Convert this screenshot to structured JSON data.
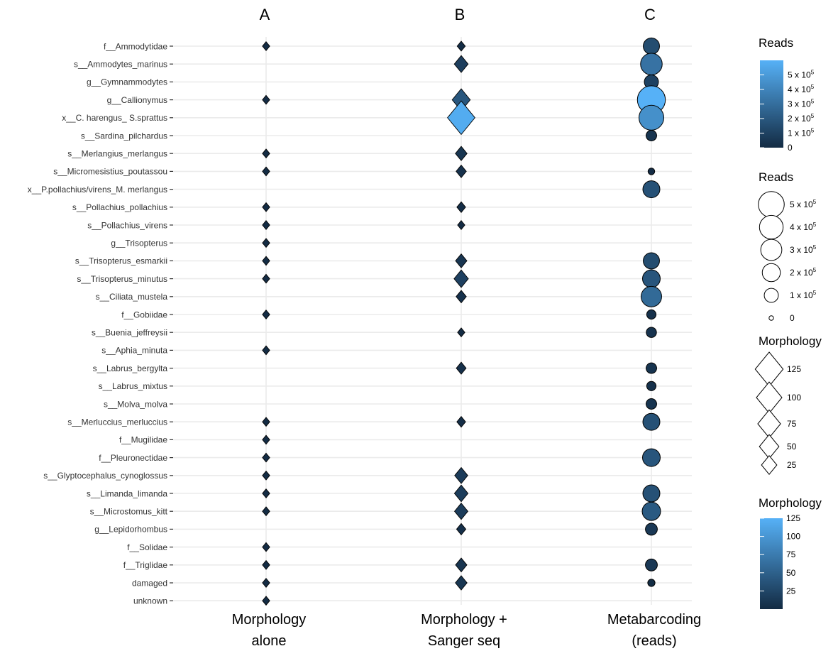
{
  "chart_data": {
    "type": "scatter",
    "panels": [
      {
        "id": "A",
        "label": "A",
        "title_lines": [
          "Morphology",
          "alone"
        ],
        "shape": "diamond"
      },
      {
        "id": "B",
        "label": "B",
        "title_lines": [
          "Morphology +",
          "Sanger seq"
        ],
        "shape": "diamond"
      },
      {
        "id": "C",
        "label": "C",
        "title_lines": [
          "Metabarcoding",
          "(reads)"
        ],
        "shape": "circle"
      }
    ],
    "taxa": [
      "f__Ammodytidae",
      "s__Ammodytes_marinus",
      "g__Gymnammodytes",
      "g__Callionymus",
      "x__C. harengus_ S.sprattus",
      "s__Sardina_pilchardus",
      "s__Merlangius_merlangus",
      "s__Micromesistius_poutassou",
      "x__P.pollachius/virens_M. merlangus",
      "s__Pollachius_pollachius",
      "s__Pollachius_virens",
      "g__Trisopterus",
      "s__Trisopterus_esmarkii",
      "s__Trisopterus_minutus",
      "s__Ciliata_mustela",
      "f__Gobiidae",
      "s__Buenia_jeffreysii",
      "s__Aphia_minuta",
      "s__Labrus_bergylta",
      "s__Labrus_mixtus",
      "s__Molva_molva",
      "s__Merluccius_merluccius",
      "f__Mugilidae",
      "f__Pleuronectidae",
      "s__Glyptocephalus_cynoglossus",
      "s__Limanda_limanda",
      "s__Microstomus_kitt",
      "g__Lepidorhombus",
      "f__Solidae",
      "f__Triglidae",
      "damaged",
      "unknown"
    ],
    "morphology_alone": [
      1,
      null,
      null,
      1,
      null,
      null,
      1,
      1,
      null,
      1,
      1,
      1,
      1,
      1,
      null,
      1,
      null,
      1,
      null,
      null,
      null,
      1,
      1,
      1,
      1,
      1,
      1,
      null,
      1,
      1,
      1,
      1
    ],
    "morphology_sanger": [
      2,
      18,
      null,
      40,
      120,
      null,
      10,
      6,
      null,
      3,
      1,
      null,
      9,
      20,
      6,
      null,
      1,
      null,
      5,
      null,
      null,
      3,
      null,
      null,
      15,
      17,
      16,
      4,
      null,
      9,
      10,
      null
    ],
    "metabarcoding_reads": [
      150000,
      320000,
      100000,
      600000,
      450000,
      40000,
      null,
      5000,
      170000,
      null,
      null,
      null,
      150000,
      190000,
      280000,
      25000,
      35000,
      null,
      40000,
      25000,
      40000,
      170000,
      null,
      190000,
      null,
      170000,
      210000,
      60000,
      null,
      60000,
      8000,
      null
    ],
    "legends": [
      {
        "type": "colorbar",
        "title": "Reads",
        "ticks": [
          {
            "value": 500000,
            "base": "5 x 10",
            "exp": "5"
          },
          {
            "value": 400000,
            "base": "4 x 10",
            "exp": "5"
          },
          {
            "value": 300000,
            "base": "3 x 10",
            "exp": "5"
          },
          {
            "value": 200000,
            "base": "2 x 10",
            "exp": "5"
          },
          {
            "value": 100000,
            "base": "1 x 10",
            "exp": "5"
          },
          {
            "value": 0,
            "base": "0",
            "exp": ""
          }
        ],
        "range": [
          0,
          600000
        ],
        "color_low": "#132B43",
        "color_high": "#56B1F7"
      },
      {
        "type": "size",
        "shape": "circle",
        "title": "Reads",
        "items": [
          {
            "value": 500000,
            "base": "5 x 10",
            "exp": "5"
          },
          {
            "value": 400000,
            "base": "4 x 10",
            "exp": "5"
          },
          {
            "value": 300000,
            "base": "3 x 10",
            "exp": "5"
          },
          {
            "value": 200000,
            "base": "2 x 10",
            "exp": "5"
          },
          {
            "value": 100000,
            "base": "1 x 10",
            "exp": "5"
          },
          {
            "value": 0,
            "base": "0",
            "exp": ""
          }
        ]
      },
      {
        "type": "size",
        "shape": "diamond",
        "title": "Morphology",
        "items": [
          {
            "value": 125,
            "label": "125"
          },
          {
            "value": 100,
            "label": "100"
          },
          {
            "value": 75,
            "label": "75"
          },
          {
            "value": 50,
            "label": "50"
          },
          {
            "value": 25,
            "label": "25"
          }
        ]
      },
      {
        "type": "colorbar",
        "title": "Morphology",
        "ticks": [
          {
            "value": 125,
            "base": "125",
            "exp": ""
          },
          {
            "value": 100,
            "base": "100",
            "exp": ""
          },
          {
            "value": 75,
            "base": "75",
            "exp": ""
          },
          {
            "value": 50,
            "base": "50",
            "exp": ""
          },
          {
            "value": 25,
            "base": "25",
            "exp": ""
          }
        ],
        "range": [
          0,
          125
        ],
        "color_low": "#132B43",
        "color_high": "#56B1F7"
      }
    ],
    "colors": {
      "low": "#132B43",
      "high": "#56B1F7",
      "grid": "#EBEBEB",
      "stroke": "#000000"
    }
  }
}
